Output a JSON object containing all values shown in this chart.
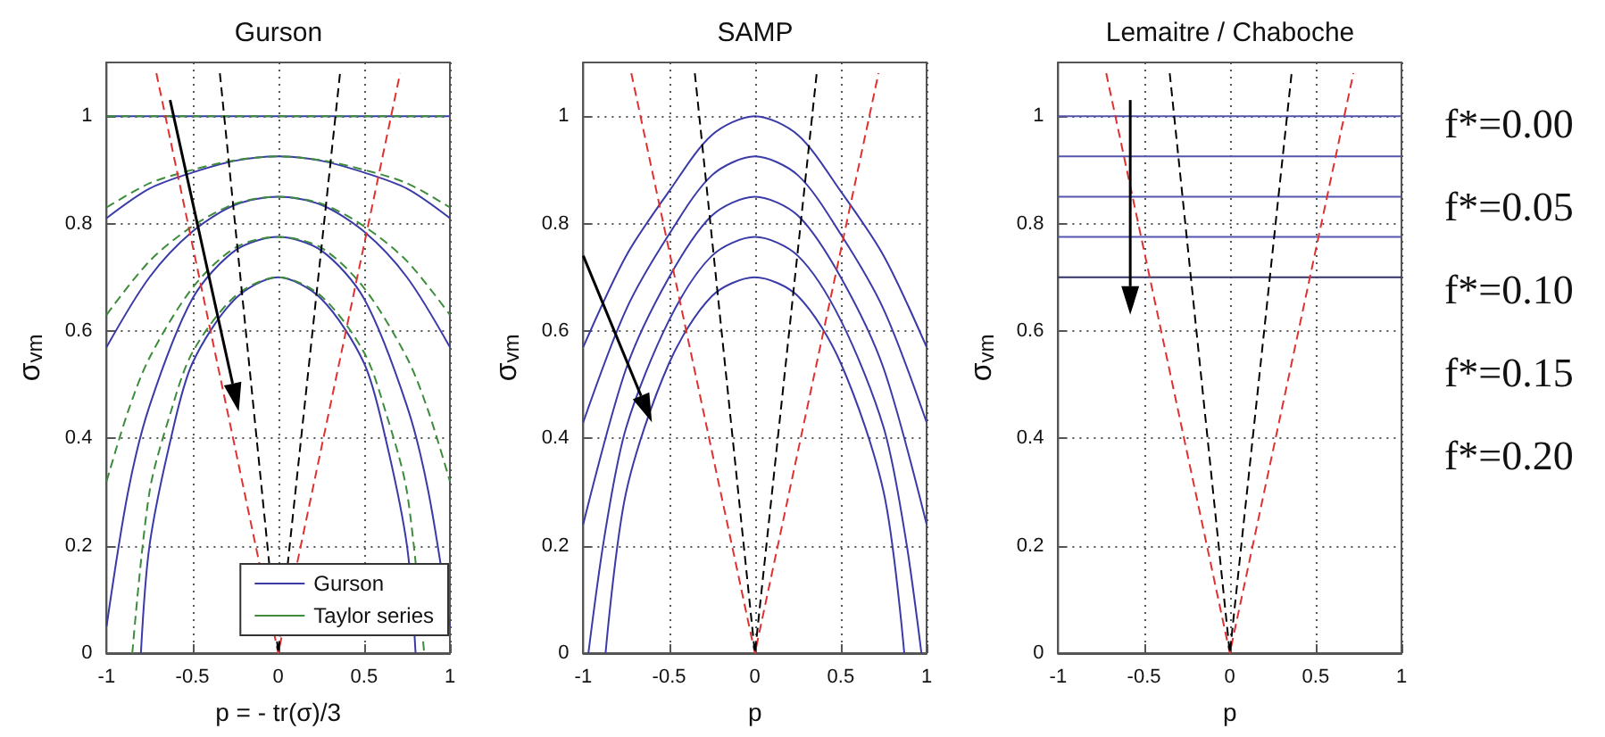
{
  "chart_data": [
    {
      "type": "line",
      "title": "Gurson",
      "xlabel": "p = - tr(σ)/3",
      "ylabel": "σ$_{vm}$",
      "xlim": [
        -1,
        1
      ],
      "xticks": [
        -1,
        -0.5,
        0,
        0.5,
        1
      ],
      "ylim": [
        0,
        1.1
      ],
      "yticks": [
        0,
        0.2,
        0.4,
        0.6,
        0.8,
        1
      ],
      "grid": true,
      "legend": "bottom right",
      "series": [
        {
          "name": "Gurson",
          "color": "#3a3aa8",
          "line_style": "solid",
          "x": [
            -1,
            1
          ],
          "values": [
            1,
            1
          ]
        },
        {
          "color": "#3a3aa8",
          "line_style": "solid",
          "x": [
            -1,
            -0.75,
            -0.5,
            -0.25,
            0,
            0.25,
            0.5,
            0.75,
            1
          ],
          "values": [
            0.81,
            0.865,
            0.895,
            0.917,
            0.925,
            0.917,
            0.895,
            0.865,
            0.81
          ]
        },
        {
          "color": "#3a3aa8",
          "line_style": "solid",
          "x": [
            -1,
            -0.75,
            -0.5,
            -0.25,
            0,
            0.25,
            0.5,
            0.75,
            1
          ],
          "values": [
            0.57,
            0.7,
            0.785,
            0.835,
            0.85,
            0.835,
            0.785,
            0.7,
            0.57
          ]
        },
        {
          "color": "#3a3aa8",
          "line_style": "solid",
          "x": [
            -1,
            -0.875,
            -0.75,
            -0.5,
            -0.25,
            0,
            0.25,
            0.5,
            0.75,
            0.875,
            1
          ],
          "values": [
            0.05,
            0.3,
            0.46,
            0.66,
            0.75,
            0.775,
            0.75,
            0.66,
            0.46,
            0.3,
            0.05
          ]
        },
        {
          "color": "#3a3aa8",
          "line_style": "solid",
          "x": [
            -0.8,
            -0.75,
            -0.625,
            -0.5,
            -0.25,
            0,
            0.25,
            0.5,
            0.625,
            0.75,
            0.8
          ],
          "values": [
            0,
            0.2,
            0.4,
            0.54,
            0.66,
            0.7,
            0.66,
            0.54,
            0.4,
            0.2,
            0
          ]
        },
        {
          "name": "Taylor series",
          "color": "#3c8c3c",
          "line_style": "dashed",
          "x": [
            -1,
            1
          ],
          "values": [
            1,
            1
          ]
        },
        {
          "color": "#3c8c3c",
          "line_style": "dashed",
          "x": [
            -1,
            -0.75,
            -0.5,
            -0.25,
            0,
            0.25,
            0.5,
            0.75,
            1
          ],
          "values": [
            0.83,
            0.875,
            0.9,
            0.918,
            0.925,
            0.918,
            0.9,
            0.875,
            0.83
          ]
        },
        {
          "color": "#3c8c3c",
          "line_style": "dashed",
          "x": [
            -1,
            -0.75,
            -0.5,
            -0.25,
            0,
            0.25,
            0.5,
            0.75,
            1
          ],
          "values": [
            0.63,
            0.73,
            0.795,
            0.837,
            0.85,
            0.837,
            0.795,
            0.73,
            0.63
          ]
        },
        {
          "color": "#3c8c3c",
          "line_style": "dashed",
          "x": [
            -1,
            -0.875,
            -0.75,
            -0.5,
            -0.25,
            0,
            0.25,
            0.5,
            0.75,
            0.875,
            1
          ],
          "values": [
            0.32,
            0.45,
            0.55,
            0.68,
            0.755,
            0.775,
            0.755,
            0.68,
            0.55,
            0.45,
            0.32
          ]
        },
        {
          "color": "#3c8c3c",
          "line_style": "dashed",
          "x": [
            -0.85,
            -0.75,
            -0.625,
            -0.5,
            -0.25,
            0,
            0.25,
            0.5,
            0.625,
            0.75,
            0.85
          ],
          "values": [
            0,
            0.3,
            0.45,
            0.56,
            0.665,
            0.7,
            0.665,
            0.56,
            0.45,
            0.3,
            0
          ]
        },
        {
          "color": "#e03030",
          "line_style": "dashed",
          "x": [
            -0.71,
            0,
            0.71
          ],
          "values": [
            1.08,
            0,
            1.08
          ]
        },
        {
          "color": "#000000",
          "line_style": "dashed",
          "x": [
            -0.34,
            0,
            0.36
          ],
          "values": [
            1.08,
            0,
            1.08
          ]
        }
      ]
    },
    {
      "type": "line",
      "title": "SAMP",
      "xlabel": "p",
      "ylabel": "σ$_{vm}$",
      "xlim": [
        -1,
        1
      ],
      "xticks": [
        -1,
        -0.5,
        0,
        0.5,
        1
      ],
      "ylim": [
        0,
        1.1
      ],
      "yticks": [
        0,
        0.2,
        0.4,
        0.6,
        0.8,
        1
      ],
      "grid": true,
      "series": [
        {
          "color": "#3a3aa8",
          "line_style": "solid",
          "x": [
            -1,
            -0.75,
            -0.5,
            -0.25,
            0,
            0.25,
            0.5,
            0.75,
            1
          ],
          "values": [
            0.57,
            0.74,
            0.86,
            0.965,
            1,
            0.965,
            0.86,
            0.74,
            0.57
          ]
        },
        {
          "color": "#3a3aa8",
          "line_style": "solid",
          "x": [
            -1,
            -0.75,
            -0.5,
            -0.25,
            0,
            0.25,
            0.5,
            0.75,
            1
          ],
          "values": [
            0.43,
            0.64,
            0.78,
            0.89,
            0.925,
            0.89,
            0.78,
            0.64,
            0.43
          ]
        },
        {
          "color": "#3a3aa8",
          "line_style": "solid",
          "x": [
            -1,
            -0.75,
            -0.5,
            -0.25,
            0,
            0.25,
            0.5,
            0.75,
            1
          ],
          "values": [
            0.24,
            0.53,
            0.7,
            0.815,
            0.85,
            0.815,
            0.7,
            0.53,
            0.24
          ]
        },
        {
          "color": "#3a3aa8",
          "line_style": "solid",
          "x": [
            -0.97,
            -0.875,
            -0.75,
            -0.5,
            -0.25,
            0,
            0.25,
            0.5,
            0.75,
            0.875,
            0.97
          ],
          "values": [
            0,
            0.22,
            0.42,
            0.62,
            0.74,
            0.775,
            0.74,
            0.62,
            0.42,
            0.22,
            0
          ]
        },
        {
          "color": "#3a3aa8",
          "line_style": "solid",
          "x": [
            -0.87,
            -0.75,
            -0.5,
            -0.25,
            0,
            0.25,
            0.5,
            0.75,
            0.87
          ],
          "values": [
            0,
            0.3,
            0.54,
            0.665,
            0.7,
            0.665,
            0.54,
            0.3,
            0
          ]
        },
        {
          "color": "#e03030",
          "line_style": "dashed",
          "x": [
            -0.72,
            0,
            0.72
          ],
          "values": [
            1.08,
            0,
            1.08
          ]
        },
        {
          "color": "#000000",
          "line_style": "dashed",
          "x": [
            -0.35,
            0,
            0.36
          ],
          "values": [
            1.08,
            0,
            1.08
          ]
        }
      ]
    },
    {
      "type": "line",
      "title": "Lemaitre / Chaboche",
      "xlabel": "p",
      "ylabel": "σ$_{vm}$",
      "xlim": [
        -1,
        1
      ],
      "xticks": [
        -1,
        -0.5,
        0,
        0.5,
        1
      ],
      "ylim": [
        0,
        1.1
      ],
      "yticks": [
        0,
        0.2,
        0.4,
        0.6,
        0.8,
        1
      ],
      "grid": true,
      "annotations": [
        "f*=0.00",
        "f*=0.05",
        "f*=0.10",
        "f*=0.15",
        "f*=0.20"
      ],
      "series": [
        {
          "color": "#5555b0",
          "line_style": "solid",
          "x": [
            -1,
            1
          ],
          "values": [
            1,
            1
          ]
        },
        {
          "color": "#5555b0",
          "line_style": "solid",
          "x": [
            -1,
            1
          ],
          "values": [
            0.925,
            0.925
          ]
        },
        {
          "color": "#5555b0",
          "line_style": "solid",
          "x": [
            -1,
            1
          ],
          "values": [
            0.85,
            0.85
          ]
        },
        {
          "color": "#5555b0",
          "line_style": "solid",
          "x": [
            -1,
            1
          ],
          "values": [
            0.775,
            0.775
          ]
        },
        {
          "color": "#333366",
          "line_style": "solid",
          "x": [
            -1,
            1
          ],
          "values": [
            0.7,
            0.7
          ]
        },
        {
          "color": "#e03030",
          "line_style": "dashed",
          "x": [
            -0.72,
            0,
            0.72
          ],
          "values": [
            1.08,
            0,
            1.08
          ]
        },
        {
          "color": "#000000",
          "line_style": "dashed",
          "x": [
            -0.35,
            0,
            0.36
          ],
          "values": [
            1.08,
            0,
            1.08
          ]
        }
      ]
    }
  ]
}
